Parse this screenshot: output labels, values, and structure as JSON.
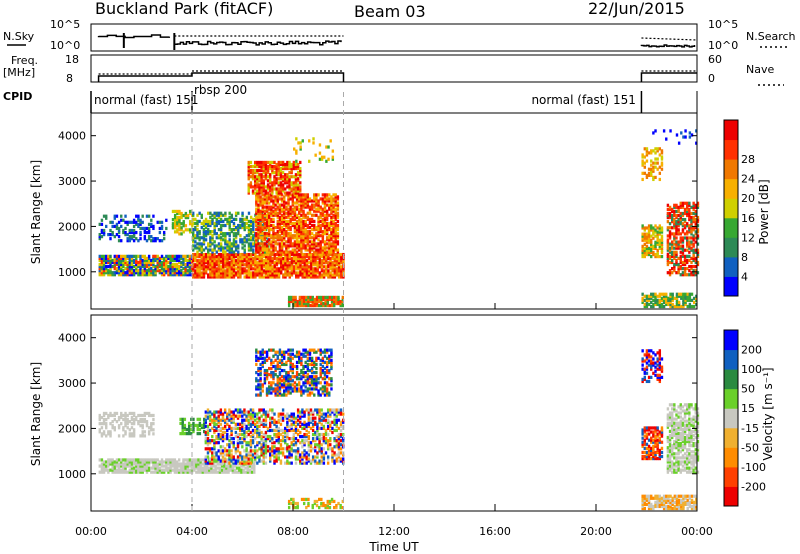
{
  "header": {
    "station": "Buckland Park (fitACF)",
    "beam": "Beam 03",
    "date": "22/Jun/2015"
  },
  "status_panels": {
    "nsky_label": "N.Sky",
    "nsearch_label": "N.Search",
    "noise_ticks_left": [
      "10^5",
      "10^0"
    ],
    "noise_ticks_right": [
      "10^5",
      "10^0"
    ],
    "freq_label_1": "Freq.",
    "freq_label_2": "[MHz]",
    "freq_ticks": [
      "18",
      "8"
    ],
    "nave_label": "Nave",
    "nave_ticks": [
      "60",
      "0"
    ],
    "cpid_label": "CPID",
    "cpid_segments": [
      {
        "label": "normal (fast) 151",
        "start_hour": 0,
        "end_hour": 4.0
      },
      {
        "label": "rbsp 200",
        "start_hour": 4.0,
        "end_hour": 10.0
      },
      {
        "label": "normal (fast) 151",
        "start_hour": 21.8,
        "end_hour": 24.0
      }
    ]
  },
  "chart_data": [
    {
      "type": "heatmap",
      "name": "power",
      "ylabel": "Slant Range [km]",
      "yticks": [
        1000,
        2000,
        3000,
        4000
      ],
      "ylim": [
        180,
        4500
      ],
      "xlim_hours": [
        0,
        24
      ],
      "colorbar_label": "Power [dB]",
      "colorbar_ticks": [
        "4",
        "8",
        "12",
        "16",
        "20",
        "24",
        "28"
      ],
      "colorbar_colors": [
        "#0000ff",
        "#1060c0",
        "#2d8a56",
        "#37a832",
        "#cfcf00",
        "#f7b000",
        "#f07800",
        "#ff3000",
        "#ee0000"
      ],
      "data_intervals_hours": [
        [
          0.3,
          10.0
        ],
        [
          21.8,
          24.0
        ]
      ],
      "features": [
        {
          "start_hour": 0.3,
          "end_hour": 4.0,
          "range_min_km": 900,
          "range_max_km": 1400,
          "level": "mid-high"
        },
        {
          "start_hour": 4.0,
          "end_hour": 10.0,
          "range_min_km": 900,
          "range_max_km": 3800,
          "level": "high"
        },
        {
          "start_hour": 7.8,
          "end_hour": 10.0,
          "range_min_km": 200,
          "range_max_km": 450,
          "level": "high"
        },
        {
          "start_hour": 21.8,
          "end_hour": 24.0,
          "range_min_km": 700,
          "range_max_km": 4100,
          "level": "mixed"
        }
      ]
    },
    {
      "type": "heatmap",
      "name": "velocity",
      "ylabel": "Slant Range [km]",
      "yticks": [
        1000,
        2000,
        3000,
        4000
      ],
      "ylim": [
        180,
        4500
      ],
      "xlim_hours": [
        0,
        24
      ],
      "xticks": [
        "00:00",
        "04:00",
        "08:00",
        "12:00",
        "16:00",
        "20:00",
        "00:00"
      ],
      "xlabel": "Time UT",
      "colorbar_label": "Velocity [m s⁻¹]",
      "colorbar_ticks": [
        "-200",
        "-100",
        "-50",
        "-15",
        "15",
        "50",
        "100",
        "200"
      ],
      "colorbar_colors": [
        "#ee0000",
        "#ff4000",
        "#ff8c00",
        "#f0b030",
        "#c8c8c0",
        "#6ad02a",
        "#2a8a40",
        "#1060c0",
        "#0000ff"
      ],
      "data_intervals_hours": [
        [
          0.3,
          10.0
        ],
        [
          21.8,
          24.0
        ]
      ],
      "features": [
        {
          "start_hour": 0.3,
          "end_hour": 6.5,
          "range_min_km": 900,
          "range_max_km": 1400,
          "level": "ground-scatter"
        },
        {
          "start_hour": 6.5,
          "end_hour": 9.5,
          "range_min_km": 2700,
          "range_max_km": 3700,
          "level": "mixed positive"
        },
        {
          "start_hour": 21.8,
          "end_hour": 24.0,
          "range_min_km": 700,
          "range_max_km": 3800,
          "level": "mixed"
        }
      ]
    }
  ],
  "colors": {
    "frame": "#000000",
    "guide": "#aaaaaa",
    "background": "#ffffff"
  }
}
